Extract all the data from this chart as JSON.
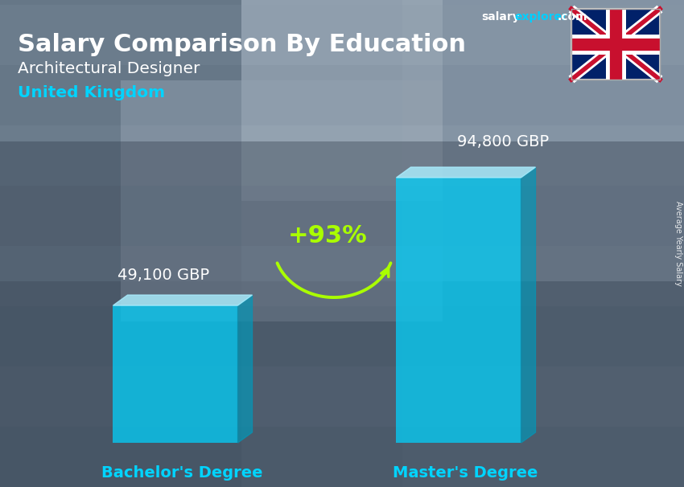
{
  "title_main": "Salary Comparison By Education",
  "title_sub": "Architectural Designer",
  "title_country": "United Kingdom",
  "watermark_salary": "salary",
  "watermark_explorer": "explorer",
  "watermark_com": ".com",
  "side_label": "Average Yearly Salary",
  "categories": [
    "Bachelor's Degree",
    "Master's Degree"
  ],
  "values": [
    49100,
    94800
  ],
  "value_labels": [
    "49,100 GBP",
    "94,800 GBP"
  ],
  "pct_change": "+93%",
  "bar_face_color": "#00d4ff",
  "bar_top_color": "#aaeeff",
  "bar_side_color": "#0099bb",
  "bar_alpha": 0.72,
  "bg_light": "#8a9ab0",
  "bg_dark": "#4a5568",
  "title_color": "#ffffff",
  "subtitle_color": "#ffffff",
  "country_color": "#00d4ff",
  "label_color": "#ffffff",
  "xlabel_color": "#00d4ff",
  "pct_color": "#aaff00",
  "arrow_color": "#aaff00",
  "salary_label_color": "#ffffff",
  "watermark_color1": "#ffffff",
  "watermark_color2": "#00cfff",
  "figsize": [
    8.5,
    6.06
  ],
  "dpi": 100
}
